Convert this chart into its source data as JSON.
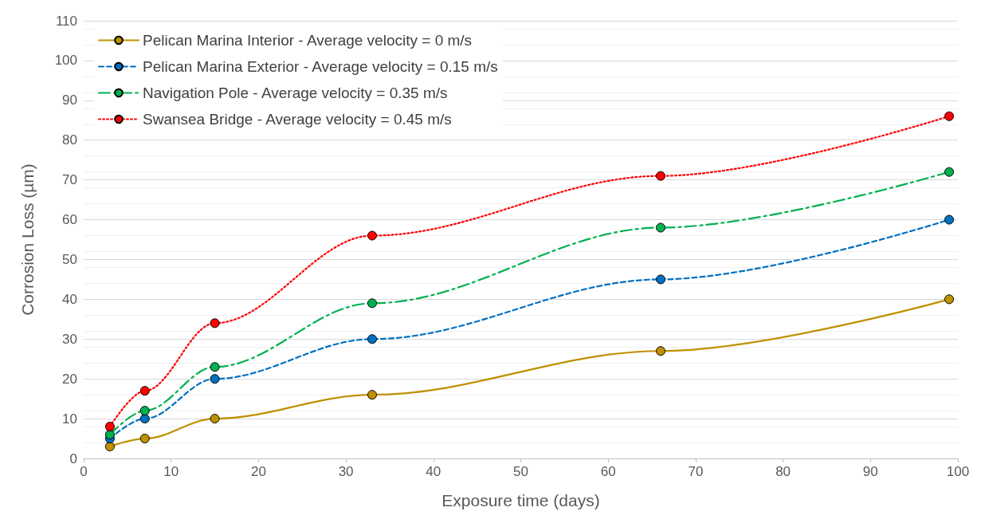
{
  "chart_data": {
    "type": "line",
    "xlabel": "Exposure time (days)",
    "ylabel": "Corrosion Loss (µm)",
    "x": [
      3,
      7,
      15,
      33,
      66,
      99
    ],
    "series": [
      {
        "name": "Pelican Marina Interior - Average velocity = 0 m/s",
        "color": "#bf9000",
        "line_style": "solid",
        "values": [
          3,
          5,
          10,
          16,
          27,
          40
        ]
      },
      {
        "name": "Pelican Marina Exterior - Average velocity = 0.15 m/s",
        "color": "#0070c0",
        "line_style": "dashed",
        "values": [
          5,
          10,
          20,
          30,
          45,
          60
        ]
      },
      {
        "name": "Navigation Pole - Average velocity = 0.35 m/s",
        "color": "#00b050",
        "line_style": "dashdot",
        "values": [
          6,
          12,
          23,
          39,
          58,
          72
        ]
      },
      {
        "name": "Swansea Bridge - Average velocity = 0.45 m/s",
        "color": "#ff0000",
        "line_style": "dotted",
        "values": [
          8,
          17,
          34,
          56,
          71,
          86
        ]
      }
    ],
    "xlim": [
      0,
      100
    ],
    "xticks": [
      0,
      10,
      20,
      30,
      40,
      50,
      60,
      70,
      80,
      90,
      100
    ],
    "ylim": [
      0,
      110
    ],
    "yticks": [
      0,
      10,
      20,
      30,
      40,
      50,
      60,
      70,
      80,
      90,
      100,
      110
    ],
    "grid": "y",
    "legend": "top left",
    "marker": "circle"
  }
}
